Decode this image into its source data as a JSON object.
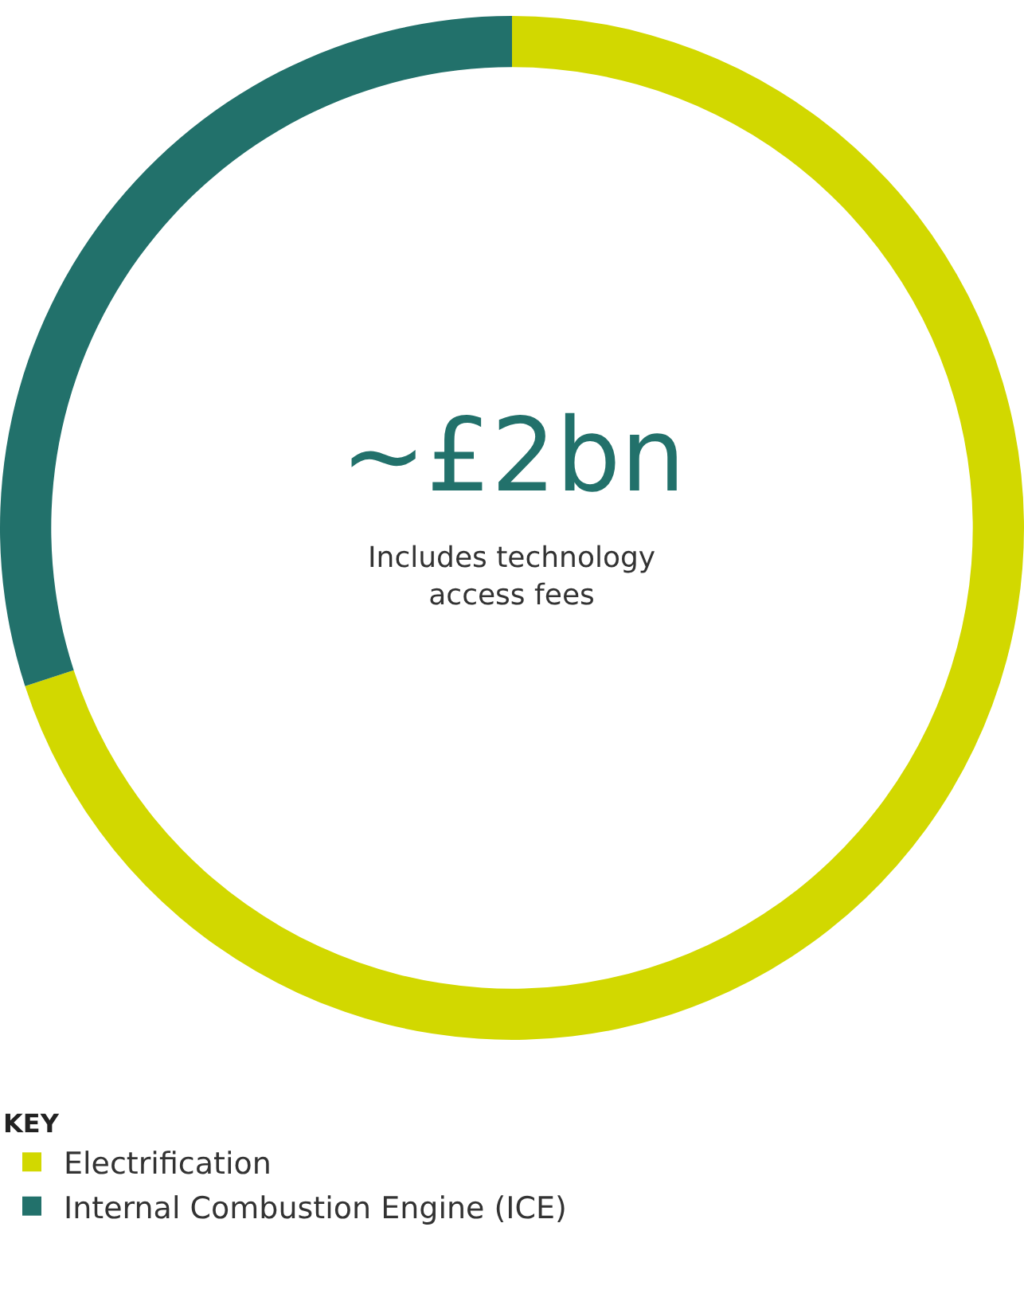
{
  "chart_data": {
    "type": "donut",
    "title": "~£2bn",
    "subtitle": "Includes technology access fees",
    "legend_title": "KEY",
    "categories": [
      "Electrification",
      "Internal Combustion Engine (ICE)"
    ],
    "values": [
      70,
      30
    ],
    "colors": [
      "#d2d800",
      "#22716b"
    ],
    "legend": "bottom left"
  }
}
